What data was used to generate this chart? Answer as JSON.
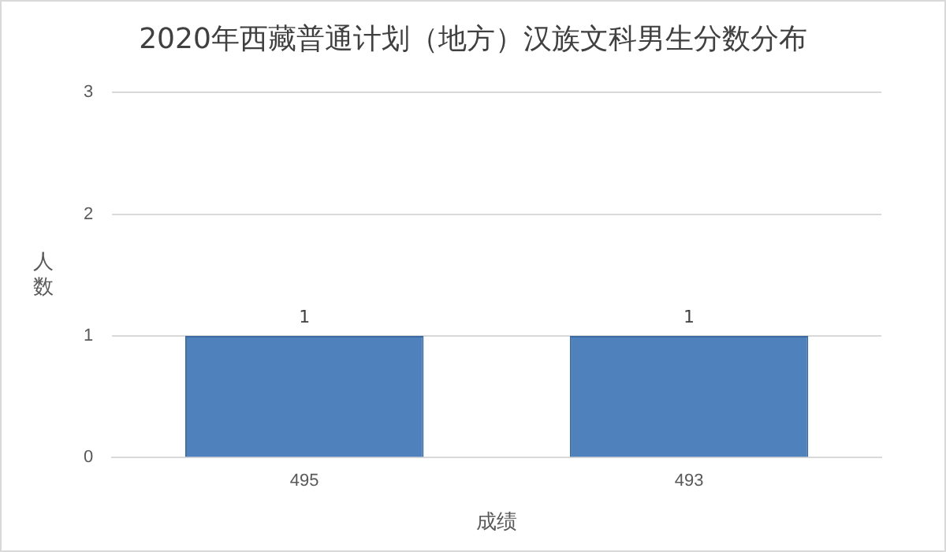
{
  "chart_data": {
    "type": "bar",
    "title": "2020年西藏普通计划（地方）汉族文科男生分数分布",
    "xlabel": "成绩",
    "ylabel": "人数",
    "categories": [
      "495",
      "493"
    ],
    "values": [
      1,
      1
    ],
    "color": "#4f81bd",
    "ylim": [
      0,
      3
    ],
    "yticks": [
      0,
      1,
      2,
      3
    ],
    "grid": "y",
    "data_labels": true
  }
}
